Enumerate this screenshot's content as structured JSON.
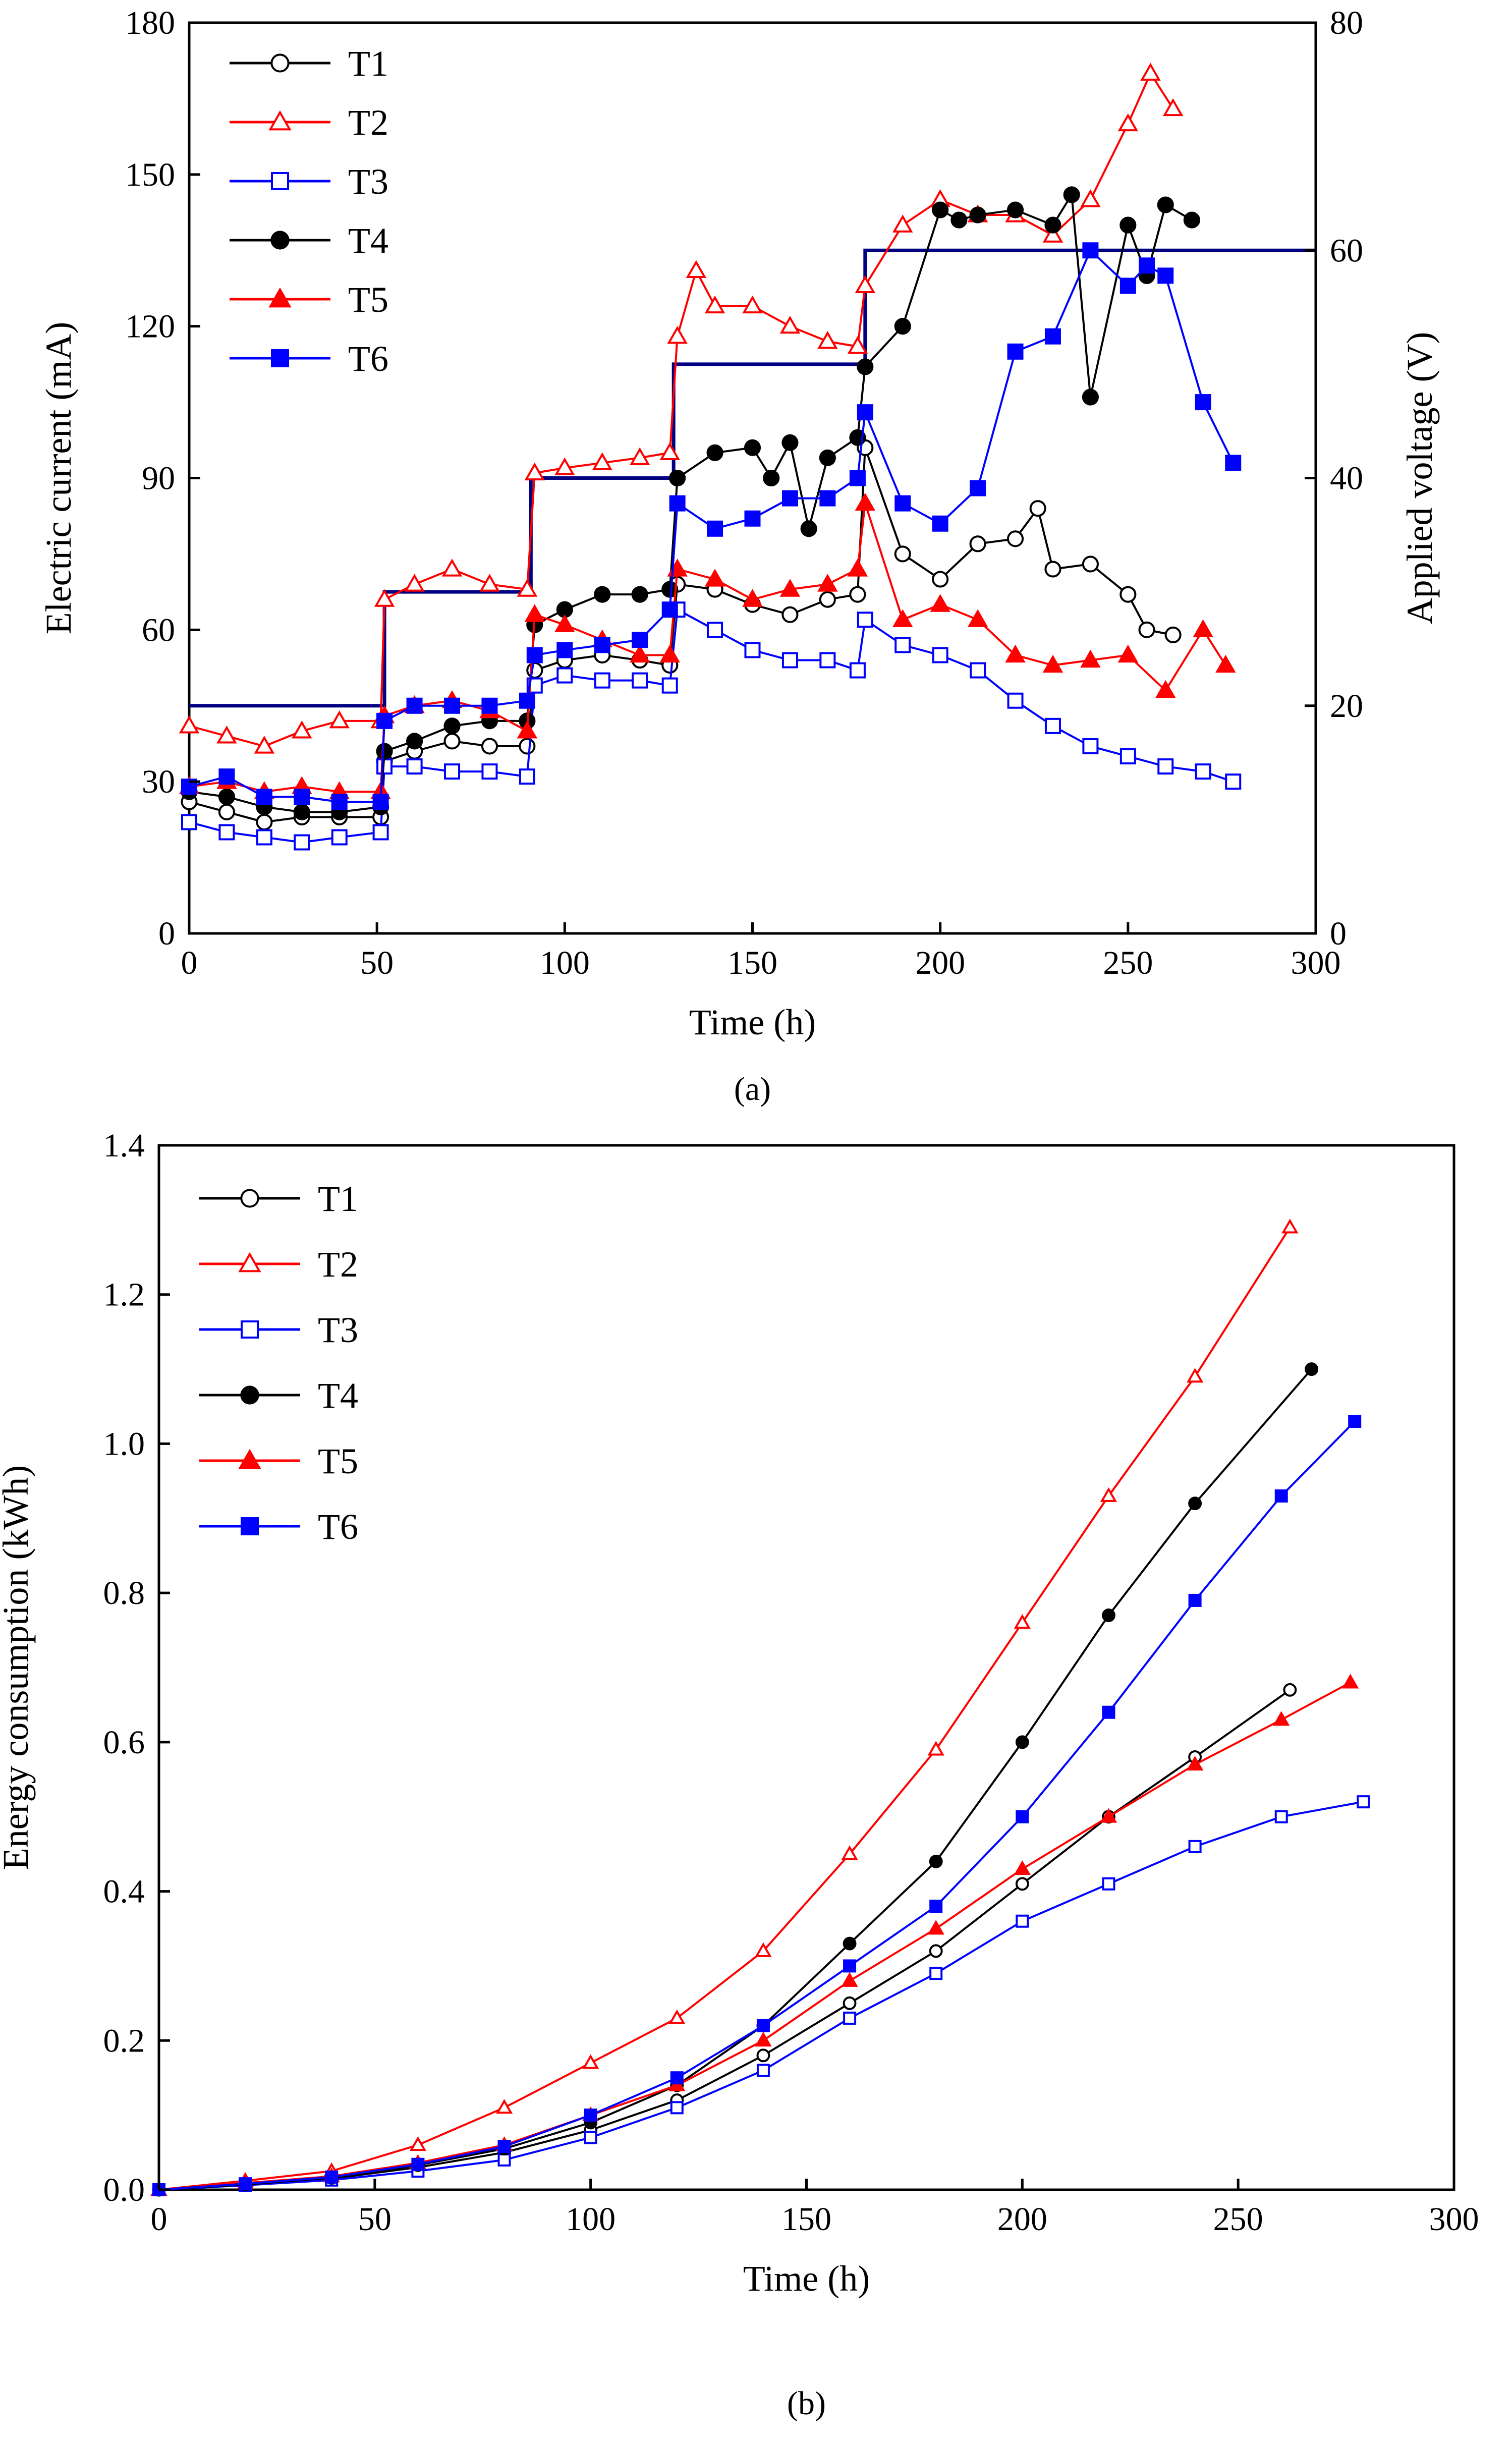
{
  "charts": [
    {
      "id": "a",
      "caption": "(a)",
      "type": "line",
      "xlabel": "Time (h)",
      "ylabel": "Electric current (mA)",
      "y2label": "Applied voltage (V)",
      "xlim": [
        0,
        300
      ],
      "ylim": [
        0,
        180
      ],
      "y2lim": [
        0,
        80
      ],
      "xticks": [
        "0",
        "50",
        "100",
        "150",
        "200",
        "250",
        "300"
      ],
      "yticks": [
        "0",
        "30",
        "60",
        "90",
        "120",
        "150",
        "180"
      ],
      "y2ticks": [
        "0",
        "20",
        "40",
        "60",
        "80"
      ],
      "legend_position": "top-left",
      "series": [
        {
          "name": "T1",
          "color": "#000000",
          "marker": "circle",
          "filled": false,
          "x": [
            0,
            10,
            20,
            30,
            40,
            51,
            52,
            60,
            70,
            80,
            90,
            92,
            100,
            110,
            120,
            128,
            130,
            140,
            150,
            160,
            170,
            178,
            180,
            190,
            200,
            210,
            220,
            226,
            230,
            240,
            250,
            255,
            262
          ],
          "y": [
            26,
            24,
            22,
            23,
            23,
            23,
            34,
            36,
            38,
            37,
            37,
            52,
            54,
            55,
            54,
            53,
            69,
            68,
            65,
            63,
            66,
            67,
            96,
            75,
            70,
            77,
            78,
            84,
            72,
            73,
            67,
            60,
            59
          ]
        },
        {
          "name": "T2",
          "color": "#ff0000",
          "marker": "triangle",
          "filled": false,
          "x": [
            0,
            10,
            20,
            30,
            40,
            51,
            52,
            60,
            70,
            80,
            90,
            92,
            100,
            110,
            120,
            128,
            130,
            135,
            140,
            150,
            160,
            170,
            178,
            180,
            190,
            200,
            210,
            220,
            230,
            240,
            250,
            256,
            262
          ],
          "y": [
            41,
            39,
            37,
            40,
            42,
            42,
            66,
            69,
            72,
            69,
            68,
            91,
            92,
            93,
            94,
            95,
            118,
            131,
            124,
            124,
            120,
            117,
            116,
            128,
            140,
            145,
            142,
            142,
            138,
            145,
            160,
            170,
            163
          ]
        },
        {
          "name": "T3",
          "color": "#0000ff",
          "marker": "square",
          "filled": false,
          "x": [
            0,
            10,
            20,
            30,
            40,
            51,
            52,
            60,
            70,
            80,
            90,
            92,
            100,
            110,
            120,
            128,
            130,
            140,
            150,
            160,
            170,
            178,
            180,
            190,
            200,
            210,
            220,
            230,
            240,
            250,
            260,
            270,
            278
          ],
          "y": [
            22,
            20,
            19,
            18,
            19,
            20,
            33,
            33,
            32,
            32,
            31,
            49,
            51,
            50,
            50,
            49,
            64,
            60,
            56,
            54,
            54,
            52,
            62,
            57,
            55,
            52,
            46,
            41,
            37,
            35,
            33,
            32,
            30
          ]
        },
        {
          "name": "T4",
          "color": "#000000",
          "marker": "circle",
          "filled": true,
          "x": [
            0,
            10,
            20,
            30,
            40,
            51,
            52,
            60,
            70,
            80,
            90,
            92,
            100,
            110,
            120,
            128,
            130,
            140,
            150,
            155,
            160,
            165,
            170,
            178,
            180,
            190,
            200,
            205,
            210,
            220,
            230,
            235,
            240,
            250,
            255,
            260,
            267
          ],
          "y": [
            28,
            27,
            25,
            24,
            24,
            25,
            36,
            38,
            41,
            42,
            42,
            61,
            64,
            67,
            67,
            68,
            90,
            95,
            96,
            90,
            97,
            80,
            94,
            98,
            112,
            120,
            143,
            141,
            142,
            143,
            140,
            146,
            106,
            140,
            130,
            144,
            141
          ]
        },
        {
          "name": "T5",
          "color": "#ff0000",
          "marker": "triangle",
          "filled": true,
          "x": [
            0,
            10,
            20,
            30,
            40,
            51,
            52,
            60,
            70,
            80,
            90,
            92,
            100,
            110,
            120,
            128,
            130,
            140,
            150,
            160,
            170,
            178,
            180,
            190,
            200,
            210,
            220,
            230,
            240,
            250,
            260,
            270,
            276
          ],
          "y": [
            29,
            30,
            28,
            29,
            28,
            28,
            43,
            45,
            46,
            44,
            40,
            63,
            61,
            58,
            55,
            55,
            72,
            70,
            66,
            68,
            69,
            72,
            85,
            62,
            65,
            62,
            55,
            53,
            54,
            55,
            48,
            60,
            53
          ]
        },
        {
          "name": "T6",
          "color": "#0000ff",
          "marker": "square",
          "filled": true,
          "x": [
            0,
            10,
            20,
            30,
            40,
            51,
            52,
            60,
            70,
            80,
            90,
            92,
            100,
            110,
            120,
            128,
            130,
            140,
            150,
            160,
            170,
            178,
            180,
            190,
            200,
            210,
            220,
            230,
            240,
            250,
            255,
            260,
            270,
            278
          ],
          "y": [
            29,
            31,
            27,
            27,
            26,
            26,
            42,
            45,
            45,
            45,
            46,
            55,
            56,
            57,
            58,
            64,
            85,
            80,
            82,
            86,
            86,
            90,
            103,
            85,
            81,
            88,
            115,
            118,
            135,
            128,
            132,
            130,
            105,
            93
          ]
        }
      ],
      "voltage_steps": {
        "name": "Applied voltage",
        "color": "#000080",
        "x": [
          0,
          52,
          52,
          91,
          91,
          129,
          129,
          180,
          180,
          300
        ],
        "y": [
          20,
          20,
          30,
          30,
          40,
          40,
          50,
          50,
          60,
          60
        ]
      }
    },
    {
      "id": "b",
      "caption": "(b)",
      "type": "line",
      "xlabel": "Time (h)",
      "ylabel": "Energy consumption (kWh)",
      "xlim": [
        0,
        300
      ],
      "ylim": [
        0,
        1.4
      ],
      "xticks": [
        "0",
        "50",
        "100",
        "150",
        "200",
        "250",
        "300"
      ],
      "yticks": [
        "0.0",
        "0.2",
        "0.4",
        "0.6",
        "0.8",
        "1.0",
        "1.2",
        "1.4"
      ],
      "legend_position": "top-left",
      "series": [
        {
          "name": "T1",
          "color": "#000000",
          "marker": "circle",
          "filled": false,
          "x": [
            0,
            20,
            40,
            60,
            80,
            100,
            120,
            140,
            160,
            180,
            200,
            220,
            240,
            262
          ],
          "y": [
            0,
            0.007,
            0.015,
            0.03,
            0.05,
            0.08,
            0.12,
            0.18,
            0.25,
            0.32,
            0.41,
            0.5,
            0.58,
            0.67
          ]
        },
        {
          "name": "T2",
          "color": "#ff0000",
          "marker": "triangle",
          "filled": false,
          "x": [
            0,
            20,
            40,
            60,
            80,
            100,
            120,
            140,
            160,
            180,
            200,
            220,
            240,
            262
          ],
          "y": [
            0,
            0.012,
            0.025,
            0.06,
            0.11,
            0.17,
            0.23,
            0.32,
            0.45,
            0.59,
            0.76,
            0.93,
            1.09,
            1.29
          ]
        },
        {
          "name": "T3",
          "color": "#0000ff",
          "marker": "square",
          "filled": false,
          "x": [
            0,
            20,
            40,
            60,
            80,
            100,
            120,
            140,
            160,
            180,
            200,
            220,
            240,
            260,
            279
          ],
          "y": [
            0,
            0.006,
            0.013,
            0.025,
            0.04,
            0.07,
            0.11,
            0.16,
            0.23,
            0.29,
            0.36,
            0.41,
            0.46,
            0.5,
            0.52
          ]
        },
        {
          "name": "T4",
          "color": "#000000",
          "marker": "circle",
          "filled": true,
          "x": [
            0,
            20,
            40,
            60,
            80,
            100,
            120,
            140,
            160,
            180,
            200,
            220,
            240,
            267
          ],
          "y": [
            0,
            0.007,
            0.016,
            0.033,
            0.055,
            0.09,
            0.14,
            0.22,
            0.33,
            0.44,
            0.6,
            0.77,
            0.92,
            1.1
          ]
        },
        {
          "name": "T5",
          "color": "#ff0000",
          "marker": "triangle",
          "filled": true,
          "x": [
            0,
            20,
            40,
            60,
            80,
            100,
            120,
            140,
            160,
            180,
            200,
            220,
            240,
            260,
            276
          ],
          "y": [
            0,
            0.009,
            0.018,
            0.036,
            0.06,
            0.1,
            0.14,
            0.2,
            0.28,
            0.35,
            0.43,
            0.5,
            0.57,
            0.63,
            0.68
          ]
        },
        {
          "name": "T6",
          "color": "#0000ff",
          "marker": "square",
          "filled": true,
          "x": [
            0,
            20,
            40,
            60,
            80,
            100,
            120,
            140,
            160,
            180,
            200,
            220,
            240,
            260,
            277
          ],
          "y": [
            0,
            0.008,
            0.017,
            0.034,
            0.058,
            0.1,
            0.15,
            0.22,
            0.3,
            0.38,
            0.5,
            0.64,
            0.79,
            0.93,
            1.03
          ]
        }
      ]
    }
  ]
}
